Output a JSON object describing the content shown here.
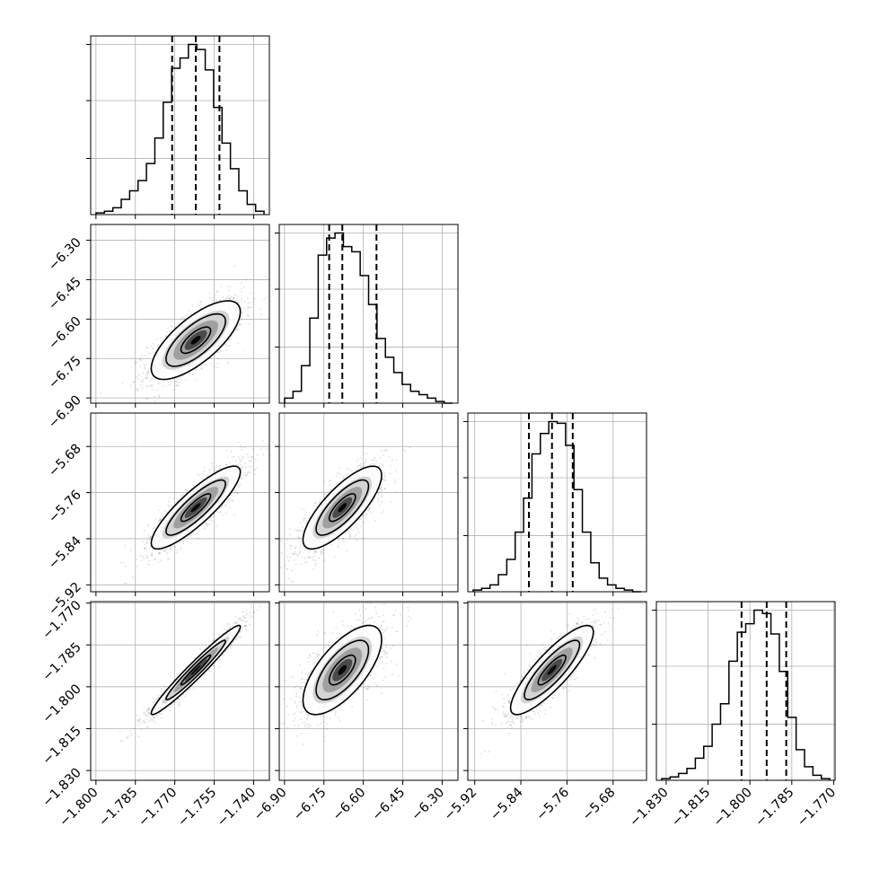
{
  "chart_data": {
    "type": "corner",
    "n_params": 4,
    "params": [
      {
        "index": 0,
        "median": -1.762,
        "q16": -1.771,
        "q84": -1.753,
        "sigma": 0.0085,
        "range": [
          -1.802,
          -1.734
        ],
        "ticks": [
          -1.8,
          -1.785,
          -1.77,
          -1.755,
          -1.74
        ],
        "tick_labels": [
          "−1.800",
          "−1.785",
          "−1.770",
          "−1.755",
          "−1.740"
        ],
        "hist": [
          0.01,
          0.02,
          0.04,
          0.09,
          0.14,
          0.2,
          0.3,
          0.45,
          0.66,
          0.86,
          0.92,
          1.0,
          0.97,
          0.85,
          0.63,
          0.42,
          0.27,
          0.14,
          0.06,
          0.02
        ]
      },
      {
        "index": 1,
        "median": -6.68,
        "q16": -6.73,
        "q84": -6.55,
        "sigma": 0.075,
        "range": [
          -6.92,
          -6.24
        ],
        "ticks": [
          -6.9,
          -6.75,
          -6.6,
          -6.45,
          -6.3
        ],
        "tick_labels": [
          "−6.90",
          "−6.75",
          "−6.60",
          "−6.45",
          "−6.30"
        ],
        "hist": [
          0.03,
          0.07,
          0.22,
          0.5,
          0.87,
          0.97,
          1.0,
          0.92,
          0.89,
          0.75,
          0.58,
          0.38,
          0.27,
          0.18,
          0.11,
          0.07,
          0.05,
          0.03,
          0.01,
          0.0
        ]
      },
      {
        "index": 2,
        "median": -5.786,
        "q16": -5.826,
        "q84": -5.75,
        "sigma": 0.036,
        "range": [
          -5.932,
          -5.622
        ],
        "ticks": [
          -5.92,
          -5.84,
          -5.76,
          -5.68
        ],
        "tick_labels": [
          "−5.92",
          "−5.84",
          "−5.76",
          "−5.68"
        ],
        "hist": [
          0.01,
          0.02,
          0.04,
          0.1,
          0.19,
          0.35,
          0.55,
          0.81,
          0.93,
          1.0,
          0.99,
          0.86,
          0.6,
          0.35,
          0.17,
          0.08,
          0.04,
          0.02,
          0.01,
          0.0
        ]
      },
      {
        "index": 3,
        "median": -1.794,
        "q16": -1.803,
        "q84": -1.787,
        "sigma": 0.008,
        "range": [
          -1.8335,
          -1.7695
        ],
        "ticks": [
          -1.83,
          -1.815,
          -1.8,
          -1.785,
          -1.77
        ],
        "tick_labels": [
          "−1.830",
          "−1.815",
          "−1.800",
          "−1.785",
          "−1.770"
        ],
        "hist": [
          0.01,
          0.02,
          0.04,
          0.07,
          0.13,
          0.2,
          0.33,
          0.45,
          0.7,
          0.87,
          0.92,
          1.0,
          0.98,
          0.86,
          0.64,
          0.37,
          0.18,
          0.08,
          0.03,
          0.01
        ]
      }
    ],
    "correlations": [
      {
        "pair": [
          1,
          0
        ],
        "rho": 0.72
      },
      {
        "pair": [
          2,
          0
        ],
        "rho": 0.86
      },
      {
        "pair": [
          2,
          1
        ],
        "rho": 0.78
      },
      {
        "pair": [
          3,
          0
        ],
        "rho": 0.97
      },
      {
        "pair": [
          3,
          1
        ],
        "rho": 0.68
      },
      {
        "pair": [
          3,
          2
        ],
        "rho": 0.85
      }
    ],
    "quantile_lines": [
      "q16",
      "median",
      "q84"
    ],
    "contour_levels_sigma": [
      0.5,
      1.0,
      1.5
    ],
    "grid": true,
    "axis_titles": [
      "",
      "",
      "",
      ""
    ],
    "colors": {
      "line": "#000000",
      "grid": "#b0b0b0",
      "points": "#000000",
      "background": "#ffffff"
    }
  }
}
